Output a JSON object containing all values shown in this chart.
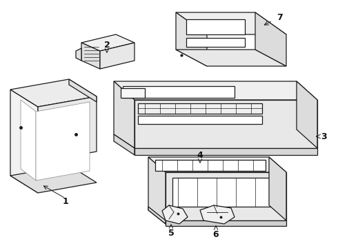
{
  "background_color": "#ffffff",
  "line_color": "#1a1a1a",
  "label_color": "#111111",
  "figsize": [
    4.9,
    3.6
  ],
  "dpi": 100,
  "lw": 0.9
}
